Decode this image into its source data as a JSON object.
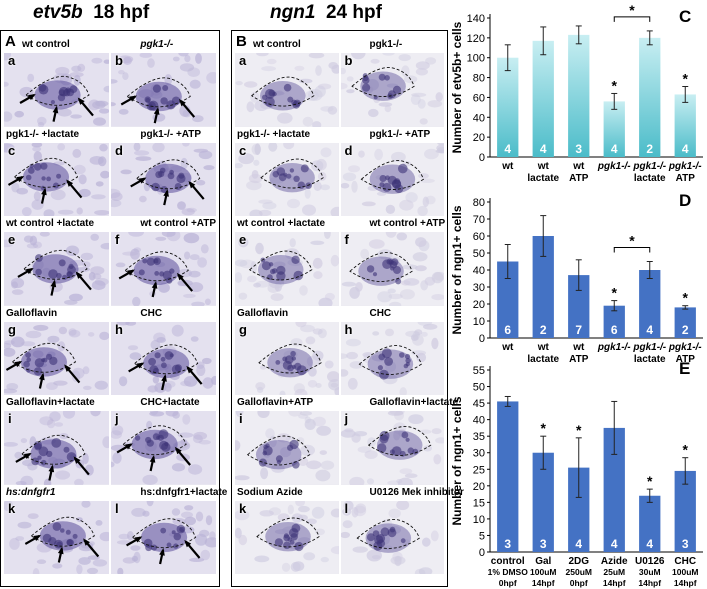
{
  "headers": {
    "etv5b_gene": "etv5b",
    "etv5b_stage": "18 hpf",
    "ngn1_gene": "ngn1",
    "ngn1_stage": "24 hpf"
  },
  "panelA": {
    "letter": "A",
    "cells": [
      {
        "sub": "a",
        "label": "wt control",
        "italic": false
      },
      {
        "sub": "b",
        "label": "pgk1-/-",
        "italic": true
      },
      {
        "sub": "c",
        "label": "pgk1-/-  +lactate",
        "italic": false
      },
      {
        "sub": "d",
        "label": "pgk1-/-  +ATP",
        "italic": false
      },
      {
        "sub": "e",
        "label": "wt control  +lactate",
        "italic": false
      },
      {
        "sub": "f",
        "label": "wt control  +ATP",
        "italic": false
      },
      {
        "sub": "g",
        "label": "Galloflavin",
        "italic": false
      },
      {
        "sub": "h",
        "label": "CHC",
        "italic": false
      },
      {
        "sub": "i",
        "label": "Galloflavin+lactate",
        "italic": false
      },
      {
        "sub": "j",
        "label": "CHC+lactate",
        "italic": false
      },
      {
        "sub": "k",
        "label": "hs:dnfgfr1",
        "italic": true
      },
      {
        "sub": "l",
        "label": "hs:dnfgfr1+lactate",
        "italic": false
      }
    ]
  },
  "panelB": {
    "letter": "B",
    "cells": [
      {
        "sub": "a",
        "label": "wt control"
      },
      {
        "sub": "b",
        "label": "pgk1-/-"
      },
      {
        "sub": "c",
        "label": "pgk1-/-  +lactate"
      },
      {
        "sub": "d",
        "label": "pgk1-/-  +ATP"
      },
      {
        "sub": "e",
        "label": "wt control  +lactate"
      },
      {
        "sub": "f",
        "label": "wt control  +ATP"
      },
      {
        "sub": "g",
        "label": "Galloflavin"
      },
      {
        "sub": "h",
        "label": "CHC"
      },
      {
        "sub": "i",
        "label": "Galloflavin+ATP"
      },
      {
        "sub": "j",
        "label": "Galloflavin+lactate"
      },
      {
        "sub": "k",
        "label": "Sodium Azide"
      },
      {
        "sub": "l",
        "label": "U0126 Mek inhibitor"
      }
    ]
  },
  "chart_data": [
    {
      "panel": "C",
      "type": "bar",
      "ylabel": "Number of etv5b+ cells",
      "ylim": [
        0,
        140
      ],
      "yticks": [
        0,
        20,
        40,
        60,
        80,
        100,
        120,
        140
      ],
      "categories": [
        [
          "wt"
        ],
        [
          "wt",
          "lactate"
        ],
        [
          "wt",
          "ATP"
        ],
        [
          "pgk1-/-"
        ],
        [
          "pgk1-/-",
          "lactate"
        ],
        [
          "pgk1-/-",
          "ATP"
        ]
      ],
      "values": [
        100,
        117,
        123,
        56,
        120,
        63
      ],
      "errors": [
        13,
        14,
        9,
        8,
        7,
        8
      ],
      "n": [
        "4",
        "4",
        "3",
        "4",
        "2",
        "4"
      ],
      "stars": [
        false,
        false,
        false,
        true,
        false,
        true
      ],
      "bracket": [
        3,
        4
      ],
      "style": "gradient-teal"
    },
    {
      "panel": "D",
      "type": "bar",
      "ylabel": "Number of ngn1+ cells",
      "ylim": [
        0,
        80
      ],
      "yticks": [
        0,
        10,
        20,
        30,
        40,
        50,
        60,
        70,
        80
      ],
      "categories": [
        [
          "wt"
        ],
        [
          "wt",
          "lactate"
        ],
        [
          "wt",
          "ATP"
        ],
        [
          "pgk1-/-"
        ],
        [
          "pgk1-/-",
          "lactate"
        ],
        [
          "pgk1-/-",
          "ATP"
        ]
      ],
      "values": [
        45,
        60,
        37,
        19,
        40,
        18
      ],
      "errors": [
        10,
        12,
        9,
        3,
        5,
        1
      ],
      "n": [
        "6",
        "2",
        "7",
        "6",
        "4",
        "2"
      ],
      "stars": [
        false,
        false,
        false,
        true,
        false,
        true
      ],
      "bracket": [
        3,
        4
      ],
      "style": "blue"
    },
    {
      "panel": "E",
      "type": "bar",
      "ylabel": "Number of ngn1+ cells",
      "ylim": [
        0,
        55
      ],
      "yticks": [
        0,
        5,
        10,
        15,
        20,
        25,
        30,
        35,
        40,
        45,
        50,
        55
      ],
      "categories": [
        [
          "control",
          "1% DMSO",
          "0hpf"
        ],
        [
          "Gal",
          "100uM",
          "14hpf"
        ],
        [
          "2DG",
          "250uM",
          "0hpf"
        ],
        [
          "Azide",
          "25uM",
          "14hpf"
        ],
        [
          "U0126",
          "30uM",
          "14hpf"
        ],
        [
          "CHC",
          "100uM",
          "14hpf"
        ]
      ],
      "values": [
        45.5,
        30,
        25.5,
        37.5,
        17,
        24.5
      ],
      "errors": [
        1.5,
        5,
        9,
        8,
        2,
        4
      ],
      "n": [
        "3",
        "3",
        "4",
        "4",
        "4",
        "3"
      ],
      "stars": [
        false,
        true,
        true,
        false,
        true,
        true
      ],
      "style": "blue"
    }
  ],
  "colors": {
    "teal": "#4bbcc9",
    "teal_light": "#c8eef2",
    "blue": "#4472c4",
    "stain": "#5b4f9a",
    "tissue": "#ecebf2"
  }
}
